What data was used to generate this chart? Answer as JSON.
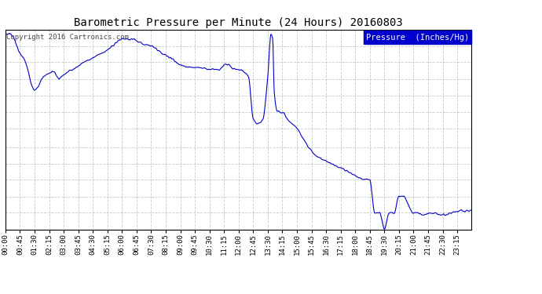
{
  "title": "Barometric Pressure per Minute (24 Hours) 20160803",
  "copyright": "Copyright 2016 Cartronics.com",
  "legend_label": "Pressure  (Inches/Hg)",
  "line_color": "#0000cc",
  "background_color": "#ffffff",
  "grid_color": "#bbbbbb",
  "ylim": [
    29.837,
    29.922
  ],
  "yticks": [
    29.837,
    29.844,
    29.851,
    29.858,
    29.865,
    29.872,
    29.88,
    29.887,
    29.894,
    29.901,
    29.908,
    29.915,
    29.922
  ],
  "xtick_labels": [
    "00:00",
    "00:45",
    "01:30",
    "02:15",
    "03:00",
    "03:45",
    "04:30",
    "05:15",
    "06:00",
    "06:45",
    "07:30",
    "08:15",
    "09:00",
    "09:45",
    "10:30",
    "11:15",
    "12:00",
    "12:45",
    "13:30",
    "14:15",
    "15:00",
    "15:45",
    "16:30",
    "17:15",
    "18:00",
    "18:45",
    "19:30",
    "20:15",
    "21:00",
    "21:45",
    "22:30",
    "23:15"
  ],
  "num_minutes": 1440
}
